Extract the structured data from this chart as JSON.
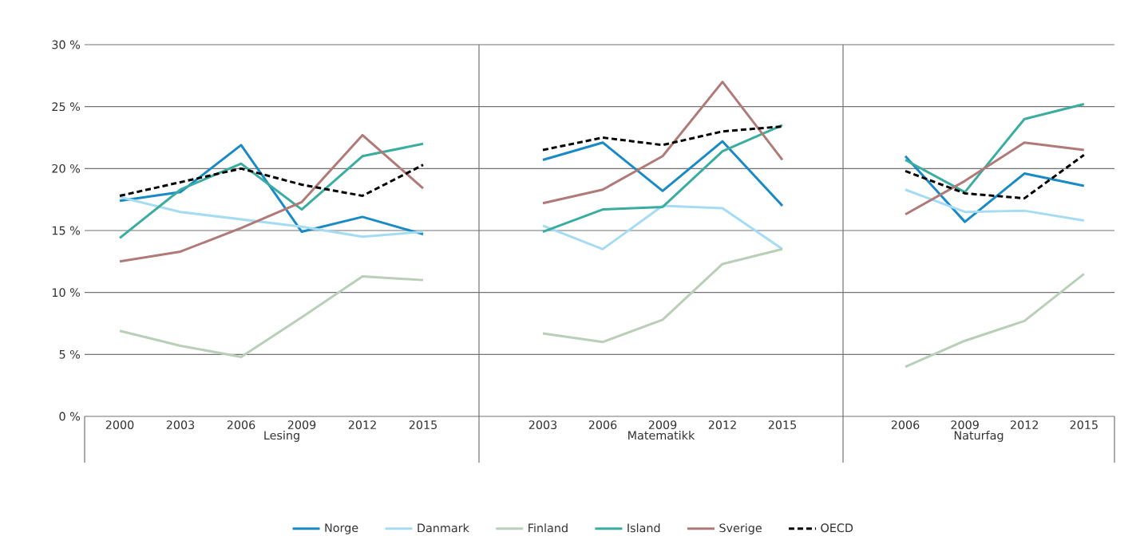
{
  "chart_data": [
    {
      "type": "line",
      "xlabel": "Lesing",
      "categories": [
        "2000",
        "2003",
        "2006",
        "2009",
        "2012",
        "2015"
      ],
      "ylim": [
        0,
        30
      ],
      "yticks": [
        {
          "value": 0,
          "label": "0 %"
        },
        {
          "value": 5,
          "label": "5 %"
        },
        {
          "value": 10,
          "label": "10 %"
        },
        {
          "value": 15,
          "label": "15 %"
        },
        {
          "value": 20,
          "label": "20 %"
        },
        {
          "value": 25,
          "label": "25 %"
        },
        {
          "value": 30,
          "label": "30 %"
        }
      ],
      "grid": "y",
      "legend": "bottom",
      "series": [
        {
          "name": "Norge",
          "color": "#1a8ac6",
          "values": [
            17.4,
            18.1,
            21.9,
            14.9,
            16.1,
            14.7
          ]
        },
        {
          "name": "Danmark",
          "color": "#a6dcf3",
          "values": [
            17.7,
            16.5,
            15.9,
            15.3,
            14.5,
            14.9
          ]
        },
        {
          "name": "Finland",
          "color": "#b9cfb8",
          "values": [
            6.9,
            5.7,
            4.8,
            8.0,
            11.3,
            11.0
          ]
        },
        {
          "name": "Island",
          "color": "#3aada0",
          "values": [
            14.4,
            18.3,
            20.4,
            16.7,
            21.0,
            22.0
          ]
        },
        {
          "name": "Sverige",
          "color": "#b07a78",
          "values": [
            12.5,
            13.3,
            15.2,
            17.3,
            22.7,
            18.4
          ]
        },
        {
          "name": "OECD",
          "color": "#000000",
          "line_style": "dashed",
          "values": [
            17.8,
            18.9,
            20.0,
            18.7,
            17.8,
            20.3
          ]
        }
      ]
    },
    {
      "type": "line",
      "xlabel": "Matematikk",
      "categories": [
        "2003",
        "2006",
        "2009",
        "2012",
        "2015"
      ],
      "ylim": [
        0,
        30
      ],
      "yticks": [
        0,
        5,
        10,
        15,
        20,
        25,
        30
      ],
      "grid": "y",
      "tick_labels": "x",
      "series": [
        {
          "color": "#1a8ac6",
          "values": [
            20.7,
            22.1,
            18.2,
            22.2,
            17.0
          ]
        },
        {
          "color": "#a6dcf3",
          "values": [
            15.4,
            13.5,
            17.0,
            16.8,
            13.5
          ]
        },
        {
          "color": "#b9cfb8",
          "values": [
            6.7,
            6.0,
            7.8,
            12.3,
            13.5
          ]
        },
        {
          "color": "#3aada0",
          "values": [
            14.9,
            16.7,
            16.9,
            21.4,
            23.5
          ]
        },
        {
          "color": "#b07a78",
          "values": [
            17.2,
            18.3,
            21.0,
            27.0,
            20.7
          ]
        },
        {
          "color": "#000000",
          "line_style": "dashed",
          "values": [
            21.5,
            22.5,
            21.9,
            23.0,
            23.4
          ]
        }
      ]
    },
    {
      "type": "line",
      "xlabel": "Naturfag",
      "categories": [
        "2006",
        "2009",
        "2012",
        "2015"
      ],
      "ylim": [
        0,
        30
      ],
      "yticks": [
        0,
        5,
        10,
        15,
        20,
        25,
        30
      ],
      "grid": "y",
      "tick_labels": "x",
      "series": [
        {
          "color": "#1a8ac6",
          "values": [
            21.0,
            15.7,
            19.6,
            18.6
          ]
        },
        {
          "color": "#a6dcf3",
          "values": [
            18.3,
            16.5,
            16.6,
            15.8
          ]
        },
        {
          "color": "#b9cfb8",
          "values": [
            4.0,
            6.1,
            7.7,
            11.5
          ]
        },
        {
          "color": "#3aada0",
          "values": [
            20.7,
            18.1,
            24.0,
            25.2
          ]
        },
        {
          "color": "#b07a78",
          "values": [
            16.3,
            19.0,
            22.1,
            21.5
          ]
        },
        {
          "color": "#000000",
          "line_style": "dashed",
          "values": [
            19.8,
            18.0,
            17.6,
            21.1
          ]
        }
      ]
    }
  ]
}
